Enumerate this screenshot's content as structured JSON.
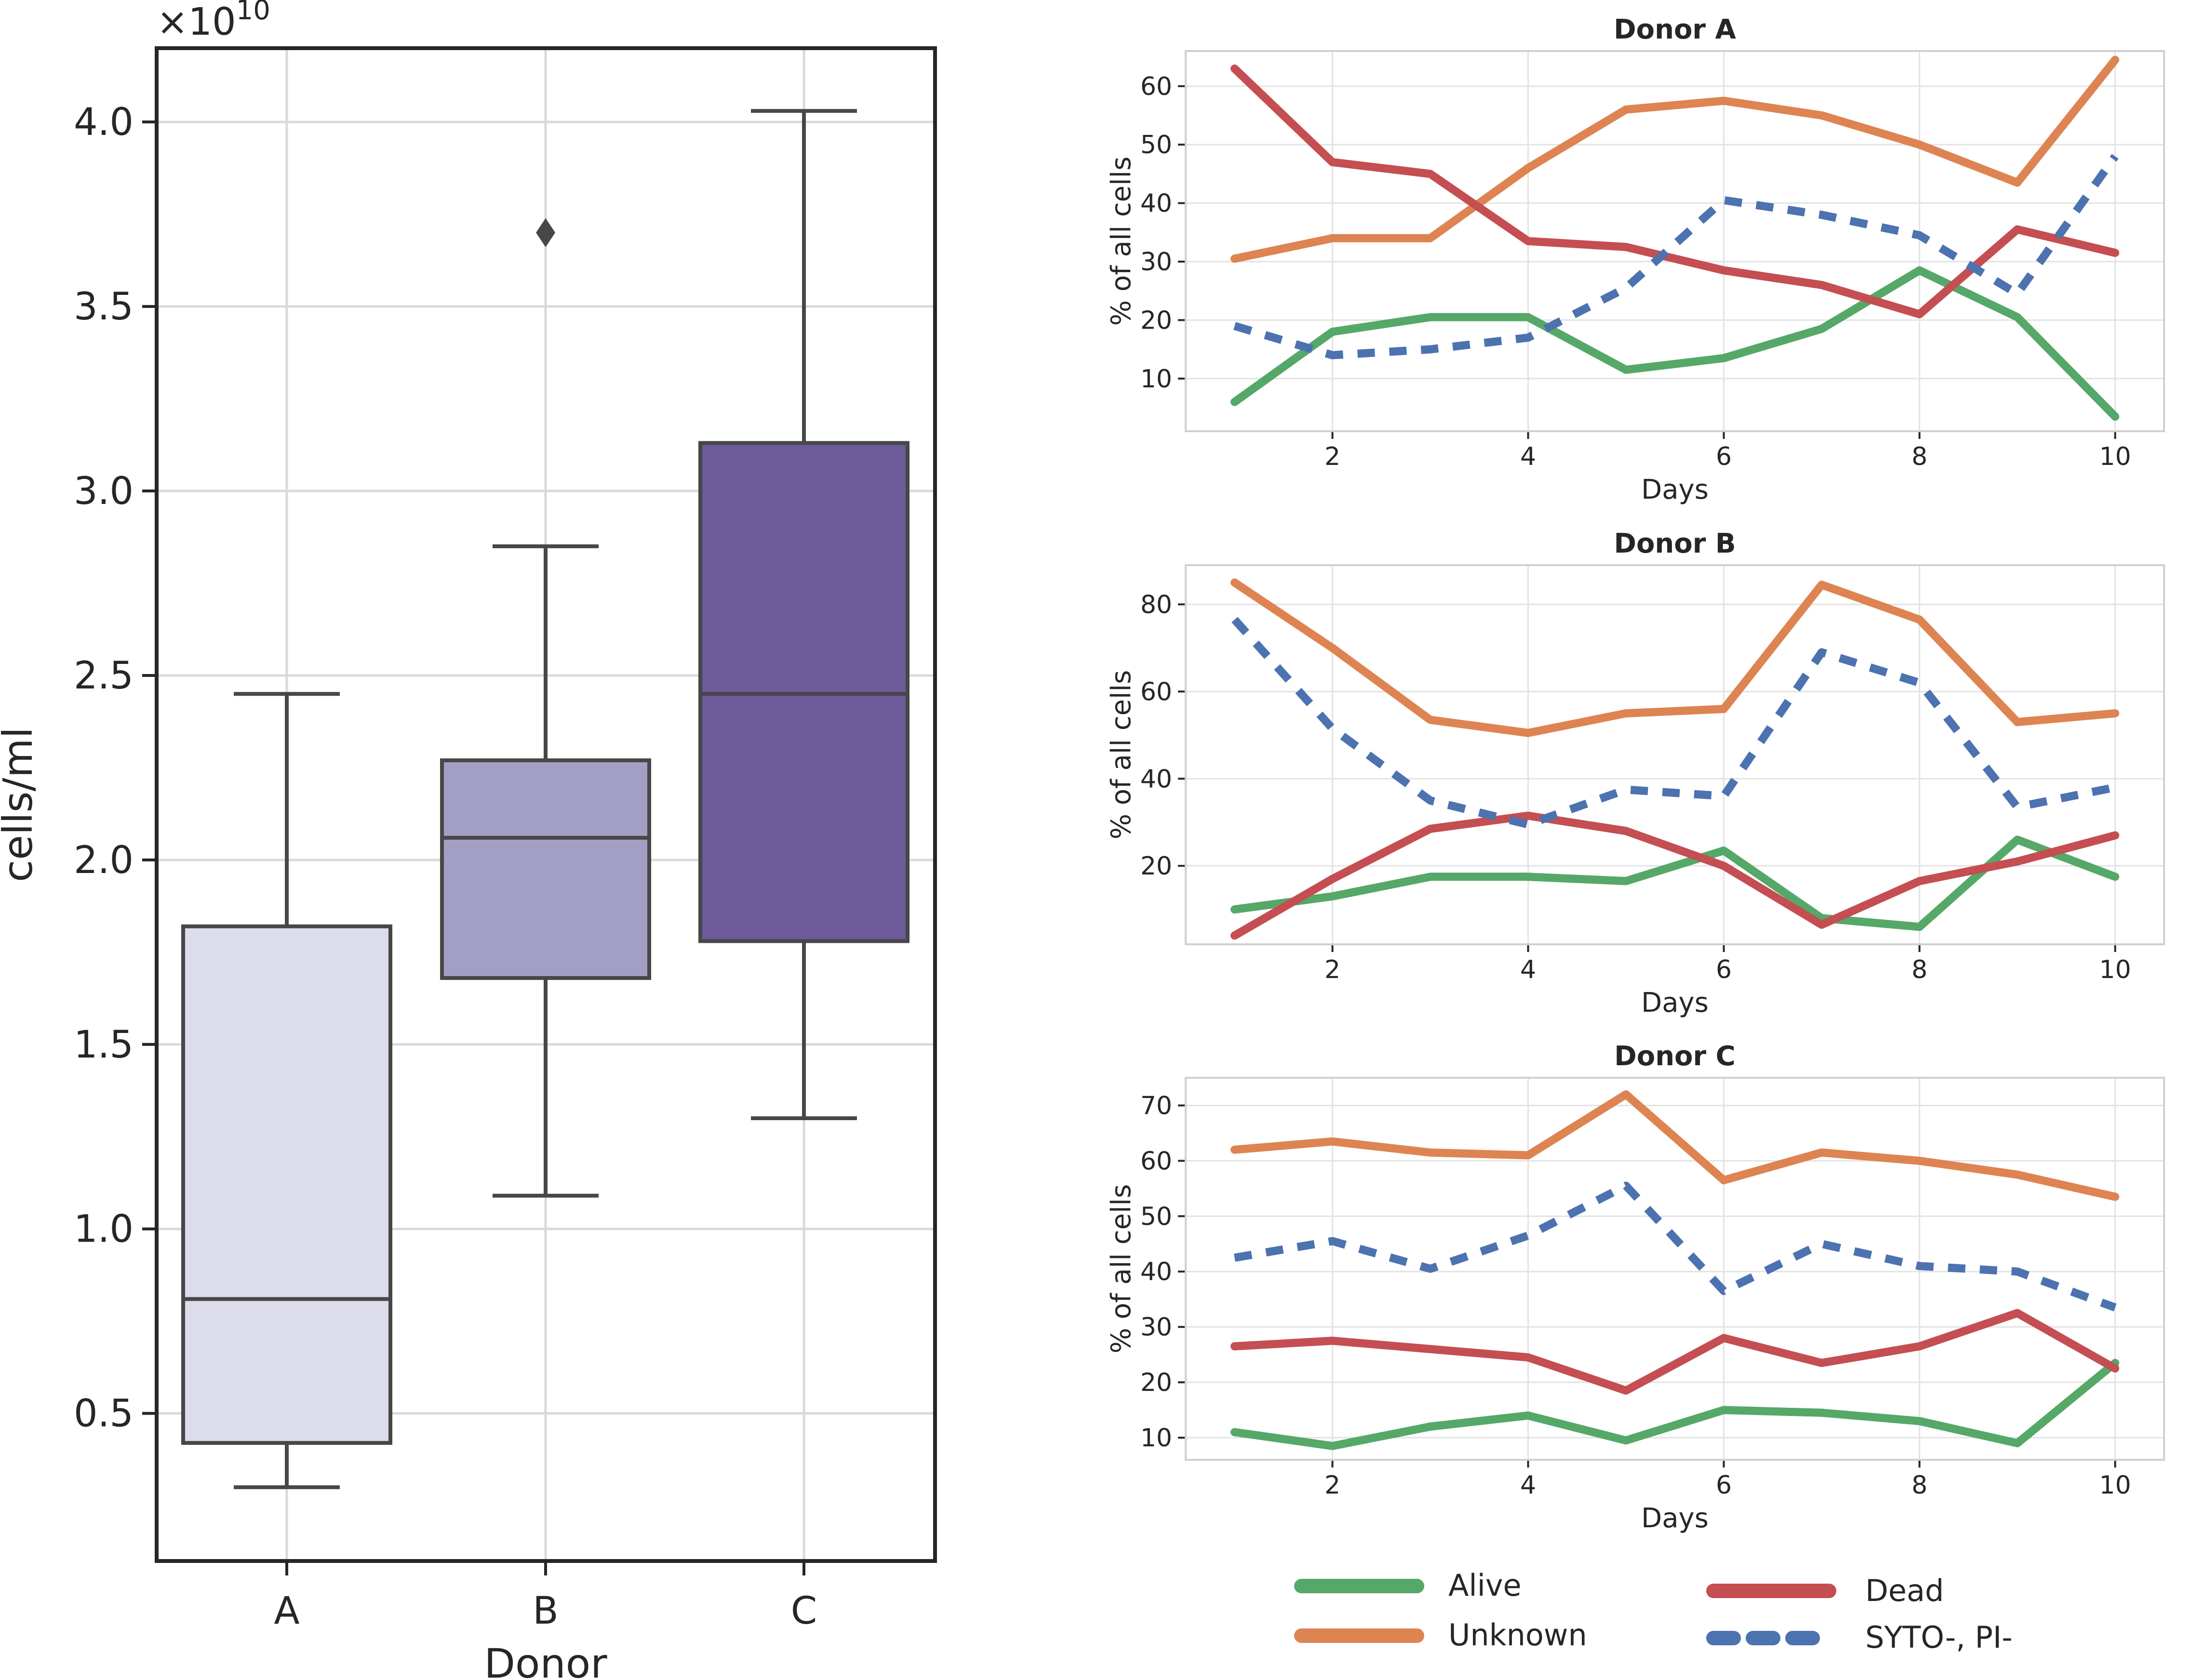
{
  "figure": {
    "colors": {
      "alive": "#55a868",
      "unknown": "#dd8452",
      "dead": "#c44e52",
      "syto": "#4c72b0",
      "box_A": "#dcdcea",
      "box_B": "#a39fc4",
      "box_C": "#6d5a9a"
    }
  },
  "chart_data": [
    {
      "type": "box",
      "title": "",
      "xlabel": "Donor",
      "ylabel": "cells/ml",
      "y_multiplier_label": "×10",
      "y_multiplier_exponent": "10",
      "ylim": [
        0.1,
        4.2
      ],
      "yticks": [
        0.5,
        1.0,
        1.5,
        2.0,
        2.5,
        3.0,
        3.5,
        4.0
      ],
      "ytick_labels": [
        "0.5",
        "1.0",
        "1.5",
        "2.0",
        "2.5",
        "3.0",
        "3.5",
        "4.0"
      ],
      "categories": [
        "A",
        "B",
        "C"
      ],
      "boxes": [
        {
          "name": "A",
          "whisker_low": 0.3,
          "q1": 0.42,
          "median": 0.81,
          "q3": 1.82,
          "whisker_high": 2.45,
          "outliers": []
        },
        {
          "name": "B",
          "whisker_low": 1.09,
          "q1": 1.68,
          "median": 2.06,
          "q3": 2.27,
          "whisker_high": 2.85,
          "outliers": [
            3.7
          ]
        },
        {
          "name": "C",
          "whisker_low": 1.3,
          "q1": 1.78,
          "median": 2.45,
          "q3": 3.13,
          "whisker_high": 4.03,
          "outliers": []
        }
      ]
    },
    {
      "type": "line",
      "title": "Donor A",
      "xlabel": "Days",
      "ylabel": "% of all cells",
      "xlim": [
        0.5,
        10.5
      ],
      "ylim": [
        1,
        66
      ],
      "xticks": [
        2,
        4,
        6,
        8,
        10
      ],
      "xtick_labels": [
        "2",
        "4",
        "6",
        "8",
        "10"
      ],
      "yticks": [
        10,
        20,
        30,
        40,
        50,
        60
      ],
      "ytick_labels": [
        "10",
        "20",
        "30",
        "40",
        "50",
        "60"
      ],
      "x": [
        1,
        2,
        3,
        4,
        5,
        6,
        7,
        8,
        9,
        10
      ],
      "series": [
        {
          "name": "Alive",
          "values": [
            6,
            18,
            20.5,
            20.5,
            11.5,
            13.5,
            18.5,
            28.5,
            20.5,
            3.5
          ]
        },
        {
          "name": "Unknown",
          "values": [
            30.5,
            34,
            34,
            46,
            56,
            57.5,
            55,
            50,
            43.5,
            64.5
          ]
        },
        {
          "name": "Dead",
          "values": [
            63,
            47,
            45,
            33.5,
            32.5,
            28.5,
            26,
            21,
            35.5,
            31.5
          ]
        },
        {
          "name": "SYTO-, PI-",
          "values": [
            19,
            14,
            15,
            17,
            25.5,
            40.5,
            38,
            34.5,
            24.5,
            48
          ]
        }
      ]
    },
    {
      "type": "line",
      "title": "Donor B",
      "xlabel": "Days",
      "ylabel": "% of all cells",
      "xlim": [
        0.5,
        10.5
      ],
      "ylim": [
        2,
        89
      ],
      "xticks": [
        2,
        4,
        6,
        8,
        10
      ],
      "xtick_labels": [
        "2",
        "4",
        "6",
        "8",
        "10"
      ],
      "yticks": [
        20,
        40,
        60,
        80
      ],
      "ytick_labels": [
        "20",
        "40",
        "60",
        "80"
      ],
      "x": [
        1,
        2,
        3,
        4,
        5,
        6,
        7,
        8,
        9,
        10
      ],
      "series": [
        {
          "name": "Alive",
          "values": [
            10,
            13,
            17.5,
            17.5,
            16.5,
            23.5,
            8,
            6,
            26,
            17.5
          ]
        },
        {
          "name": "Unknown",
          "values": [
            85,
            70,
            53.5,
            50.5,
            55,
            56,
            84.5,
            76.5,
            53,
            55
          ]
        },
        {
          "name": "Dead",
          "values": [
            4,
            17,
            28.5,
            31.5,
            28,
            20,
            6.5,
            16.5,
            21,
            27
          ]
        },
        {
          "name": "SYTO-, PI-",
          "values": [
            76.5,
            51.5,
            35,
            29.5,
            37.5,
            36,
            69,
            62,
            33.5,
            38
          ]
        }
      ]
    },
    {
      "type": "line",
      "title": "Donor C",
      "xlabel": "Days",
      "ylabel": "% of all cells",
      "xlim": [
        0.5,
        10.5
      ],
      "ylim": [
        6,
        75
      ],
      "xticks": [
        2,
        4,
        6,
        8,
        10
      ],
      "xtick_labels": [
        "2",
        "4",
        "6",
        "8",
        "10"
      ],
      "yticks": [
        10,
        20,
        30,
        40,
        50,
        60,
        70
      ],
      "ytick_labels": [
        "10",
        "20",
        "30",
        "40",
        "50",
        "60",
        "70"
      ],
      "x": [
        1,
        2,
        3,
        4,
        5,
        6,
        7,
        8,
        9,
        10
      ],
      "series": [
        {
          "name": "Alive",
          "values": [
            11,
            8.5,
            12,
            14,
            9.5,
            15,
            14.5,
            13,
            9,
            23.5
          ]
        },
        {
          "name": "Unknown",
          "values": [
            62,
            63.5,
            61.5,
            61,
            72,
            56.5,
            61.5,
            60,
            57.5,
            53.5
          ]
        },
        {
          "name": "Dead",
          "values": [
            26.5,
            27.5,
            26,
            24.5,
            18.5,
            28,
            23.5,
            26.5,
            32.5,
            22.5
          ]
        },
        {
          "name": "SYTO-, PI-",
          "values": [
            42.5,
            45.5,
            40.5,
            46.5,
            55.5,
            36.5,
            45,
            41,
            40,
            33.5
          ]
        }
      ]
    }
  ],
  "legend": {
    "placement": "bottom-right",
    "entries": [
      {
        "key": "alive",
        "label": "Alive",
        "style": "solid"
      },
      {
        "key": "dead",
        "label": "Dead",
        "style": "solid"
      },
      {
        "key": "unknown",
        "label": "Unknown",
        "style": "solid"
      },
      {
        "key": "syto",
        "label": "SYTO-, PI-",
        "style": "dashed"
      }
    ]
  }
}
